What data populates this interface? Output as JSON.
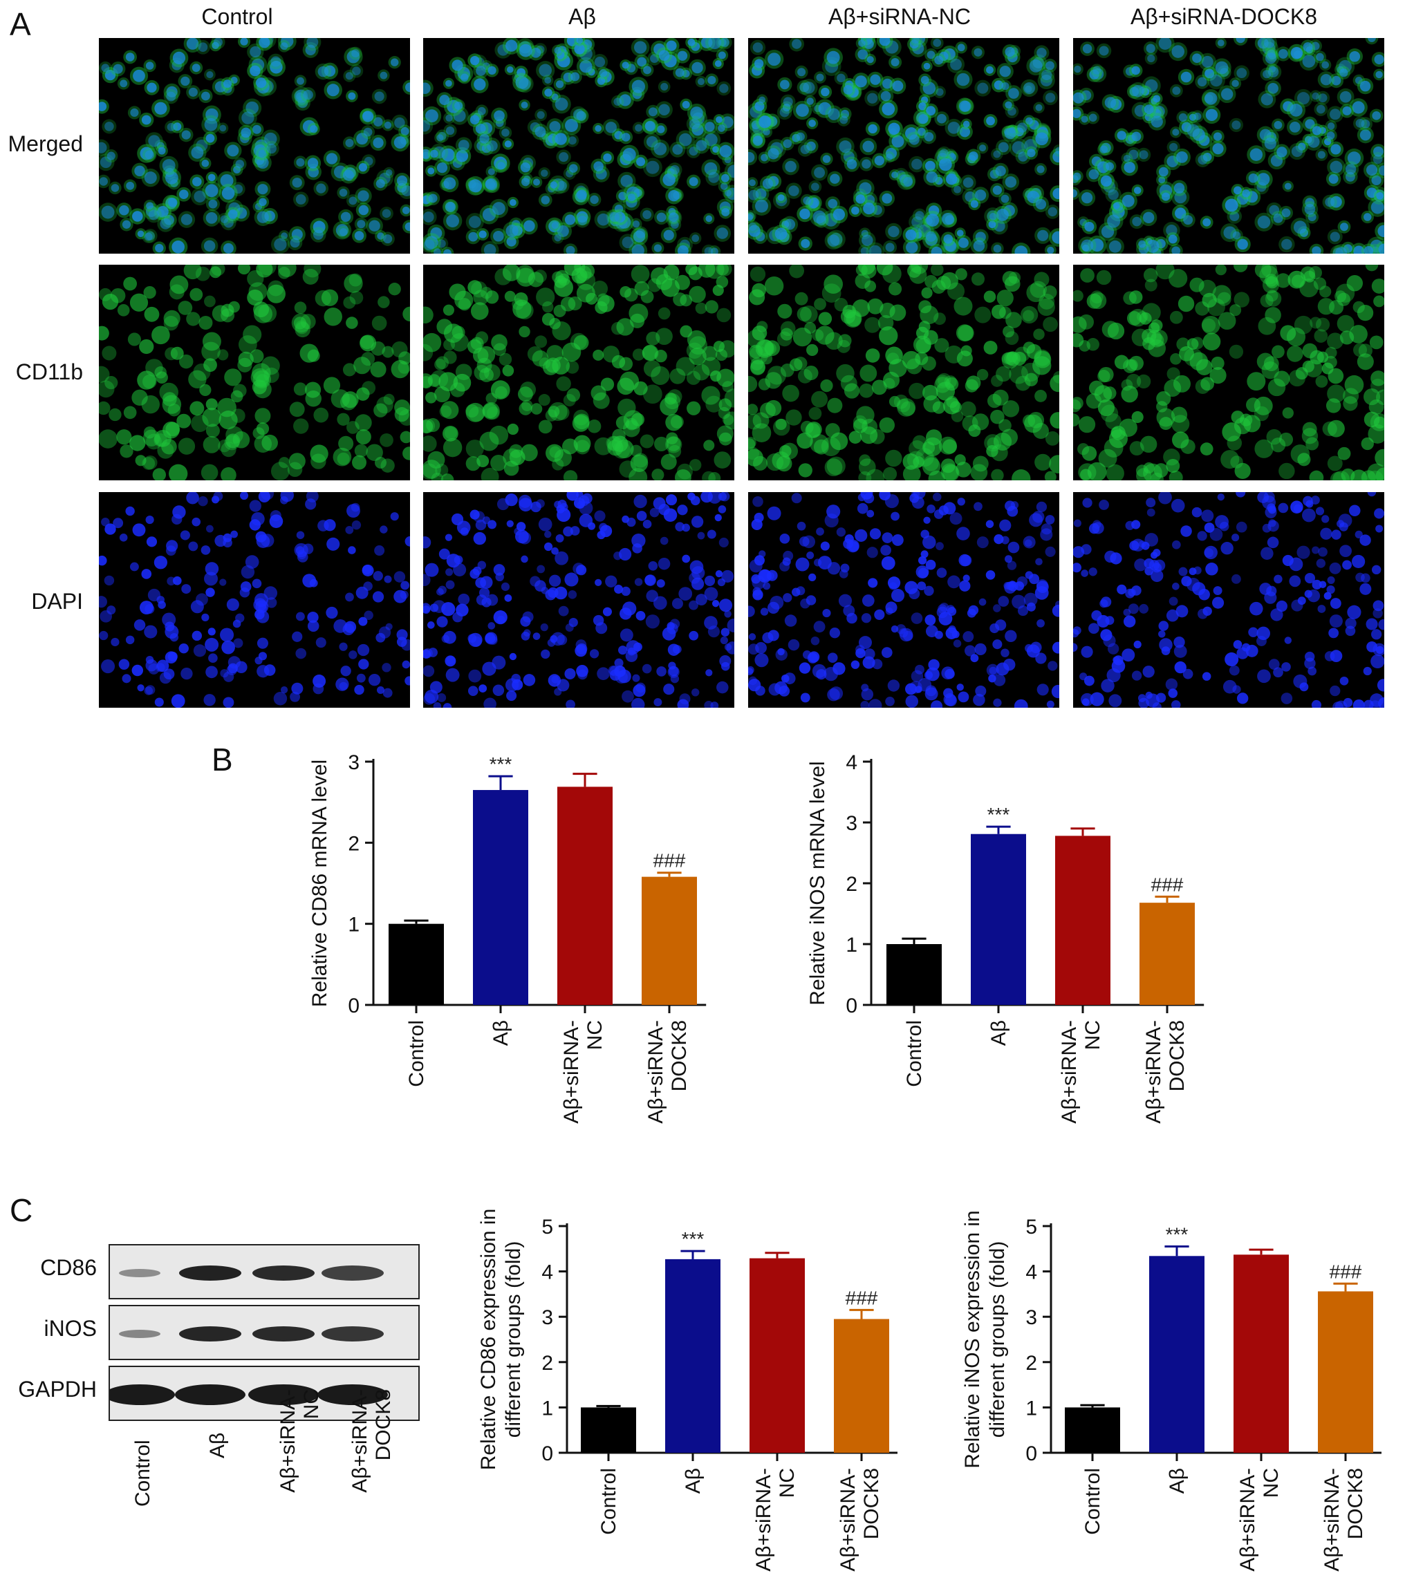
{
  "panels": {
    "a_label": "A",
    "b_label": "B",
    "c_label": "C"
  },
  "panel_a": {
    "columns": [
      "Control",
      "Aβ",
      "Aβ+siRNA-NC",
      "Aβ+siRNA-DOCK8"
    ],
    "rows": [
      "Merged",
      "CD11b",
      "DAPI"
    ],
    "channel_colors": {
      "CD11b": "#1fc83c",
      "DAPI": "#1a2cff",
      "Merged": "#1b8ae0"
    },
    "density": [
      {
        "column": "Control",
        "level": 0.45
      },
      {
        "column": "Aβ",
        "level": 0.85
      },
      {
        "column": "Aβ+siRNA-NC",
        "level": 0.85
      },
      {
        "column": "Aβ+siRNA-DOCK8",
        "level": 0.65
      }
    ]
  },
  "bar_colors": [
    "#000000",
    "#0b0d8c",
    "#a30808",
    "#c96400"
  ],
  "chart_data": [
    {
      "type": "bar",
      "id": "cd86_mrna",
      "ylabel": "Relative CD86 mRNA level",
      "categories": [
        "Control",
        "Aβ",
        "Aβ+siRNA-NC",
        "Aβ+siRNA-DOCK8"
      ],
      "tick_labels": [
        [
          "Control"
        ],
        [
          "Aβ"
        ],
        [
          "Aβ+siRNA-",
          "NC"
        ],
        [
          "Aβ+siRNA-",
          "DOCK8"
        ]
      ],
      "values": [
        1.0,
        2.65,
        2.69,
        1.58
      ],
      "errors": [
        0.04,
        0.17,
        0.16,
        0.05
      ],
      "annotations": [
        "",
        "***",
        "",
        "###"
      ],
      "ylim": [
        0,
        3
      ],
      "yticks": [
        0,
        1,
        2,
        3
      ]
    },
    {
      "type": "bar",
      "id": "inos_mrna",
      "ylabel": "Relative iNOS mRNA level",
      "categories": [
        "Control",
        "Aβ",
        "Aβ+siRNA-NC",
        "Aβ+siRNA-DOCK8"
      ],
      "tick_labels": [
        [
          "Control"
        ],
        [
          "Aβ"
        ],
        [
          "Aβ+siRNA-",
          "NC"
        ],
        [
          "Aβ+siRNA-",
          "DOCK8"
        ]
      ],
      "values": [
        1.0,
        2.81,
        2.78,
        1.68
      ],
      "errors": [
        0.09,
        0.12,
        0.12,
        0.1
      ],
      "annotations": [
        "",
        "***",
        "",
        "###"
      ],
      "ylim": [
        0,
        4
      ],
      "yticks": [
        0,
        1,
        2,
        3,
        4
      ]
    },
    {
      "type": "bar",
      "id": "cd86_protein",
      "ylabel": [
        "Relative CD86 expression in",
        "different groups (fold)"
      ],
      "categories": [
        "Control",
        "Aβ",
        "Aβ+siRNA-NC",
        "Aβ+siRNA-DOCK8"
      ],
      "tick_labels": [
        [
          "Control"
        ],
        [
          "Aβ"
        ],
        [
          "Aβ+siRNA-",
          "NC"
        ],
        [
          "Aβ+siRNA-",
          "DOCK8"
        ]
      ],
      "values": [
        1.0,
        4.27,
        4.29,
        2.95
      ],
      "errors": [
        0.03,
        0.18,
        0.12,
        0.2
      ],
      "annotations": [
        "",
        "***",
        "",
        "###"
      ],
      "ylim": [
        0,
        5
      ],
      "yticks": [
        0,
        1,
        2,
        3,
        4,
        5
      ]
    },
    {
      "type": "bar",
      "id": "inos_protein",
      "ylabel": [
        "Relative iNOS expression in",
        "different groups (fold)"
      ],
      "categories": [
        "Control",
        "Aβ",
        "Aβ+siRNA-NC",
        "Aβ+siRNA-DOCK8"
      ],
      "tick_labels": [
        [
          "Control"
        ],
        [
          "Aβ"
        ],
        [
          "Aβ+siRNA-",
          "NC"
        ],
        [
          "Aβ+siRNA-",
          "DOCK8"
        ]
      ],
      "values": [
        1.0,
        4.34,
        4.37,
        3.56
      ],
      "errors": [
        0.05,
        0.21,
        0.11,
        0.17
      ],
      "annotations": [
        "",
        "***",
        "",
        "###"
      ],
      "ylim": [
        0,
        5
      ],
      "yticks": [
        0,
        1,
        2,
        3,
        4,
        5
      ]
    }
  ],
  "blot": {
    "rows": [
      "CD86",
      "iNOS",
      "GAPDH"
    ],
    "lanes": [
      [
        "Control"
      ],
      [
        "Aβ"
      ],
      [
        "Aβ+siRNA-",
        "NC"
      ],
      [
        "Aβ+siRNA-",
        "DOCK8"
      ]
    ],
    "band_intensity": [
      [
        0.25,
        0.95,
        0.9,
        0.75
      ],
      [
        0.3,
        0.92,
        0.9,
        0.82
      ],
      [
        1.0,
        1.0,
        1.0,
        1.0
      ]
    ]
  }
}
